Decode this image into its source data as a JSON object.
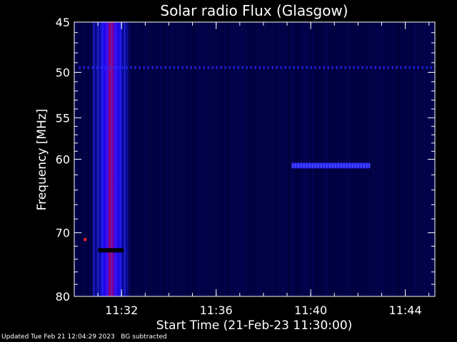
{
  "chart_data": {
    "type": "heatmap",
    "title": "Solar radio Flux (Glasgow)",
    "xlabel": "Start Time (21-Feb-23 11:30:00)",
    "ylabel": "Frequency [MHz]",
    "y_scale": "log",
    "ylim": [
      45,
      80
    ],
    "xlim": [
      "11:30:00",
      "11:45:15"
    ],
    "x_ticks": [
      "11:32",
      "11:36",
      "11:40",
      "11:44"
    ],
    "x_tick_minutes": [
      2,
      6,
      10,
      14
    ],
    "y_ticks": [
      "45",
      "50",
      "55",
      "60",
      "70",
      "80"
    ],
    "y_tick_values": [
      45,
      50,
      55,
      60,
      70,
      80
    ],
    "grid": false,
    "background_color": "#00003a",
    "features": [
      {
        "name": "type III burst",
        "start_min": 1.1,
        "end_min": 2.0,
        "fmin": 45,
        "fmax": 80,
        "intensity": "high"
      },
      {
        "name": "interference line",
        "frequency": 49.5,
        "start_min": 0.2,
        "end_min": 15.2,
        "intensity": "medium"
      },
      {
        "name": "narrowband emission",
        "frequency": 60.8,
        "start_min": 9.2,
        "end_min": 12.5,
        "intensity": "medium"
      },
      {
        "name": "spot",
        "frequency": 71.0,
        "start_min": 0.4,
        "end_min": 0.5,
        "intensity": "high"
      }
    ]
  },
  "footer": {
    "updated": "Updated Tue Feb 21 12:04:29 2023",
    "note": "BG subtracted"
  }
}
